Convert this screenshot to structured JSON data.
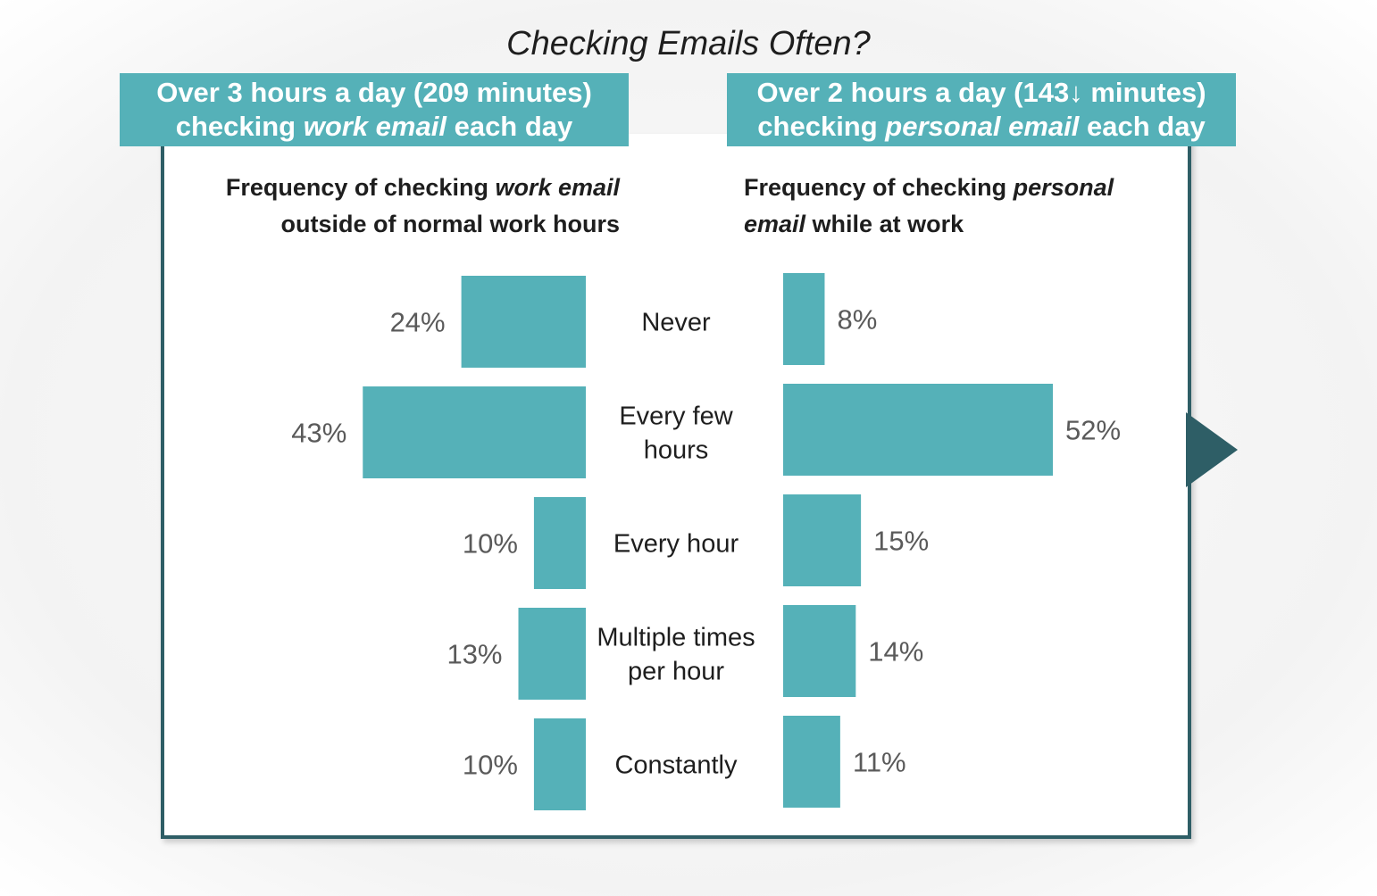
{
  "chart_data": {
    "type": "bar",
    "title": "Checking Emails Often?",
    "categories": [
      "Never",
      "Every few hours",
      "Every hour",
      "Multiple times per hour",
      "Constantly"
    ],
    "category_lines": [
      [
        "Never"
      ],
      [
        "Every few",
        "hours"
      ],
      [
        "Every hour"
      ],
      [
        "Multiple times",
        "per hour"
      ],
      [
        "Constantly"
      ]
    ],
    "series": [
      {
        "banner": {
          "line1": "Over 3 hours a day (209 minutes)",
          "line2_pre": "checking ",
          "line2_em": "work email",
          "line2_post": " each day"
        },
        "subtitle": {
          "line1_pre": "Frequency of checking ",
          "line1_em": "work email",
          "line2": "outside of normal work hours"
        },
        "values": [
          24,
          43,
          10,
          13,
          10
        ],
        "labels": [
          "24%",
          "43%",
          "10%",
          "13%",
          "10%"
        ]
      },
      {
        "banner": {
          "line1": "Over 2 hours a day (143↓ minutes)",
          "line2_pre": "checking ",
          "line2_em": "personal email",
          "line2_post": " each day"
        },
        "subtitle": {
          "line1_pre": "Frequency of checking ",
          "line1_em": "personal",
          "line2_em": "email",
          "line2_post": " while at work"
        },
        "values": [
          8,
          52,
          15,
          14,
          11
        ],
        "labels": [
          "8%",
          "52%",
          "15%",
          "14%",
          "11%"
        ]
      }
    ],
    "colors": {
      "bar": "#55b1b8",
      "frame": "#2e5e66"
    },
    "xlim": [
      0,
      52
    ]
  }
}
